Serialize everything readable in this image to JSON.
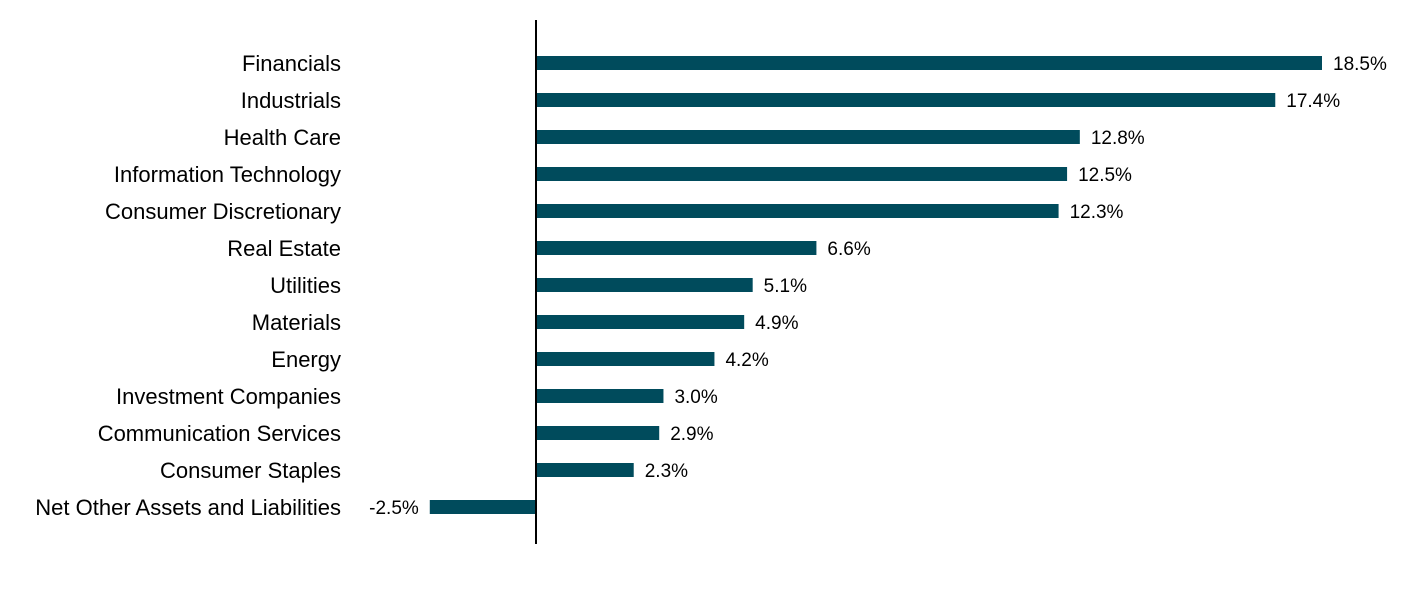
{
  "colors": {
    "bar": "#004B5C",
    "axis": "#000000",
    "text": "#000000",
    "background": "#ffffff"
  },
  "chart_data": {
    "type": "bar",
    "orientation": "horizontal",
    "title": "",
    "xlabel": "",
    "ylabel": "",
    "grid": false,
    "legend": "none",
    "categories": [
      "Financials",
      "Industrials",
      "Health Care",
      "Information Technology",
      "Consumer Discretionary",
      "Real Estate",
      "Utilities",
      "Materials",
      "Energy",
      "Investment Companies",
      "Communication Services",
      "Consumer Staples",
      "Net Other Assets and Liabilities"
    ],
    "values": [
      18.5,
      17.4,
      12.8,
      12.5,
      12.3,
      6.6,
      5.1,
      4.9,
      4.2,
      3.0,
      2.9,
      2.3,
      -2.5
    ],
    "value_labels": [
      "18.5%",
      "17.4%",
      "12.8%",
      "12.5%",
      "12.3%",
      "6.6%",
      "5.1%",
      "4.9%",
      "4.2%",
      "3.0%",
      "2.9%",
      "2.3%",
      "-2.5%"
    ],
    "xlim": [
      -2.5,
      18.5
    ]
  }
}
